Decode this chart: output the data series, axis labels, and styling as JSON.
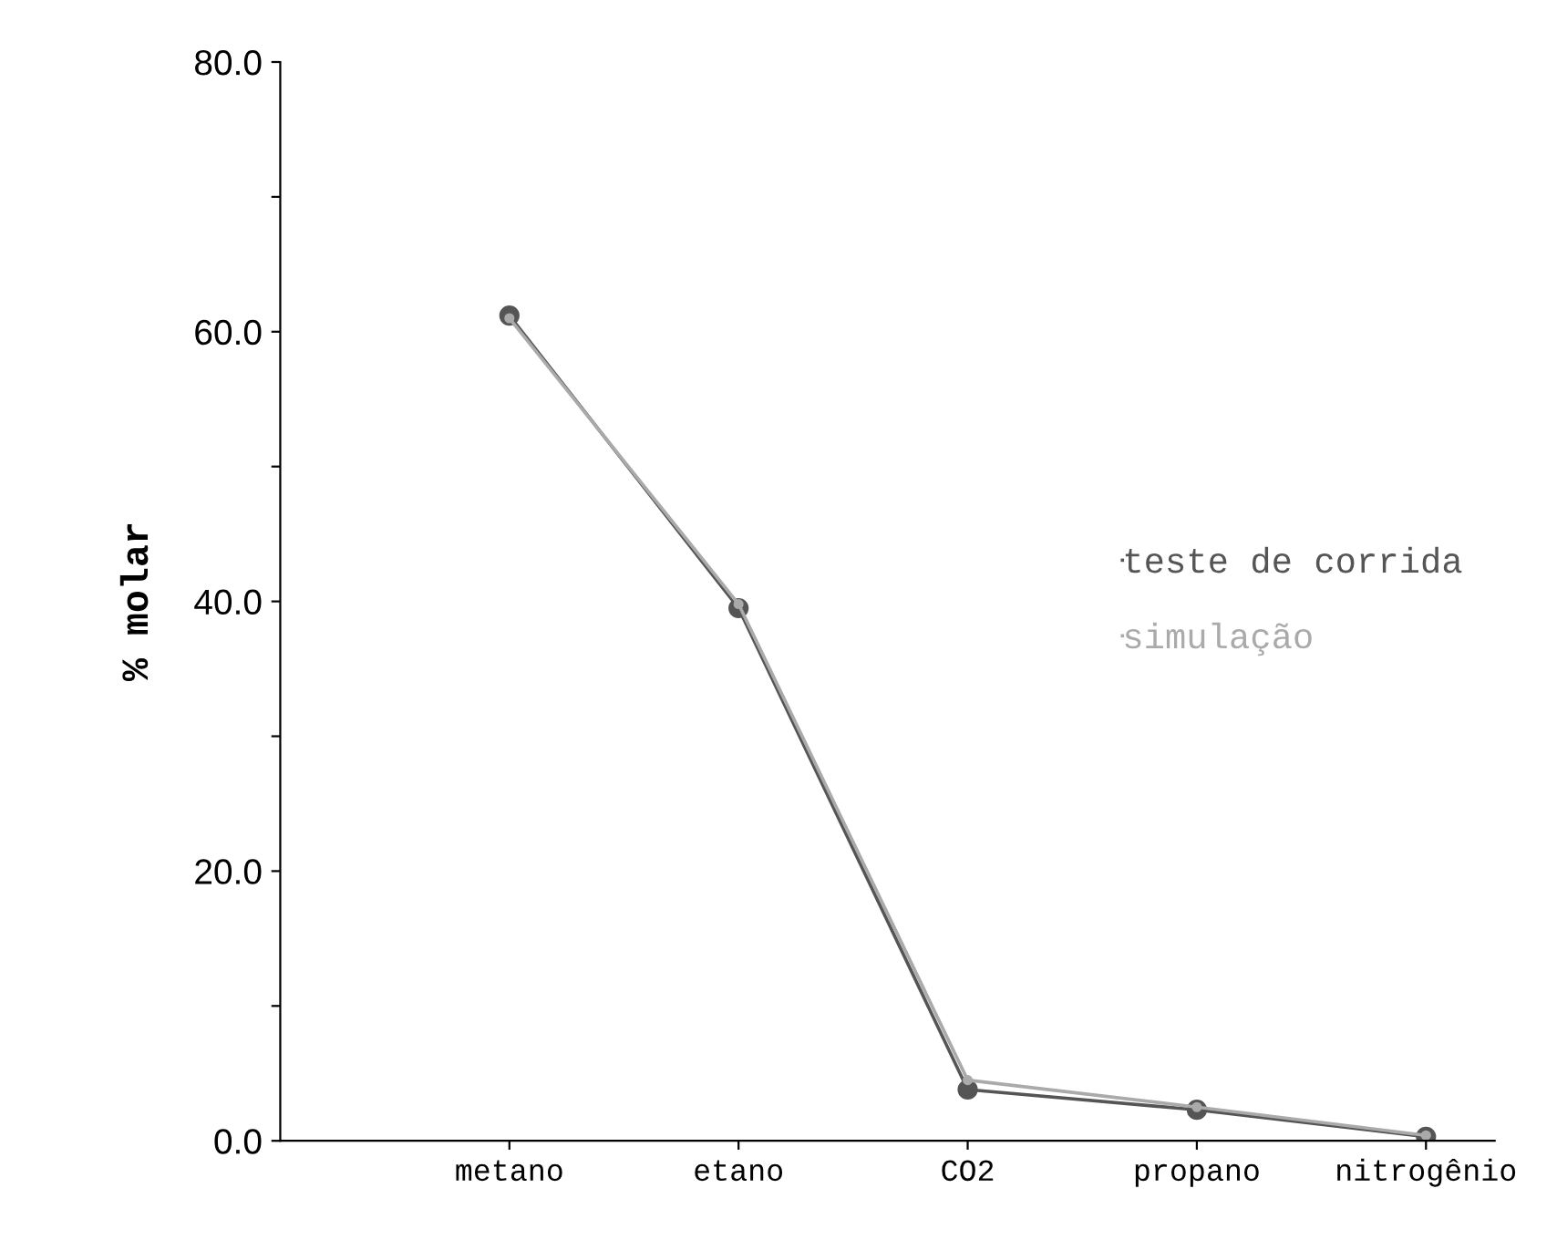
{
  "chart_data": {
    "type": "line",
    "ylabel": "% molar",
    "categories": [
      "metano",
      "etano",
      "CO2",
      "propano",
      "nitrogênio"
    ],
    "series": [
      {
        "name": "teste de corrida",
        "color": "#555555",
        "values": [
          61.2,
          39.5,
          3.8,
          2.3,
          0.3
        ]
      },
      {
        "name": "simulação",
        "color": "#aaaaaa",
        "values": [
          61.0,
          39.8,
          4.5,
          2.5,
          0.4
        ]
      }
    ],
    "ylim": [
      0,
      80
    ],
    "yticks": [
      {
        "value": 0,
        "label": "0.0"
      },
      {
        "value": 10,
        "label": null
      },
      {
        "value": 20,
        "label": "20.0"
      },
      {
        "value": 30,
        "label": null
      },
      {
        "value": 40,
        "label": "40.0"
      },
      {
        "value": 50,
        "label": null
      },
      {
        "value": 60,
        "label": "60.0"
      },
      {
        "value": 70,
        "label": null
      },
      {
        "value": 80,
        "label": "80.0"
      }
    ],
    "marker": "circle",
    "line_style": "solid",
    "grid": false,
    "legend": "right"
  }
}
